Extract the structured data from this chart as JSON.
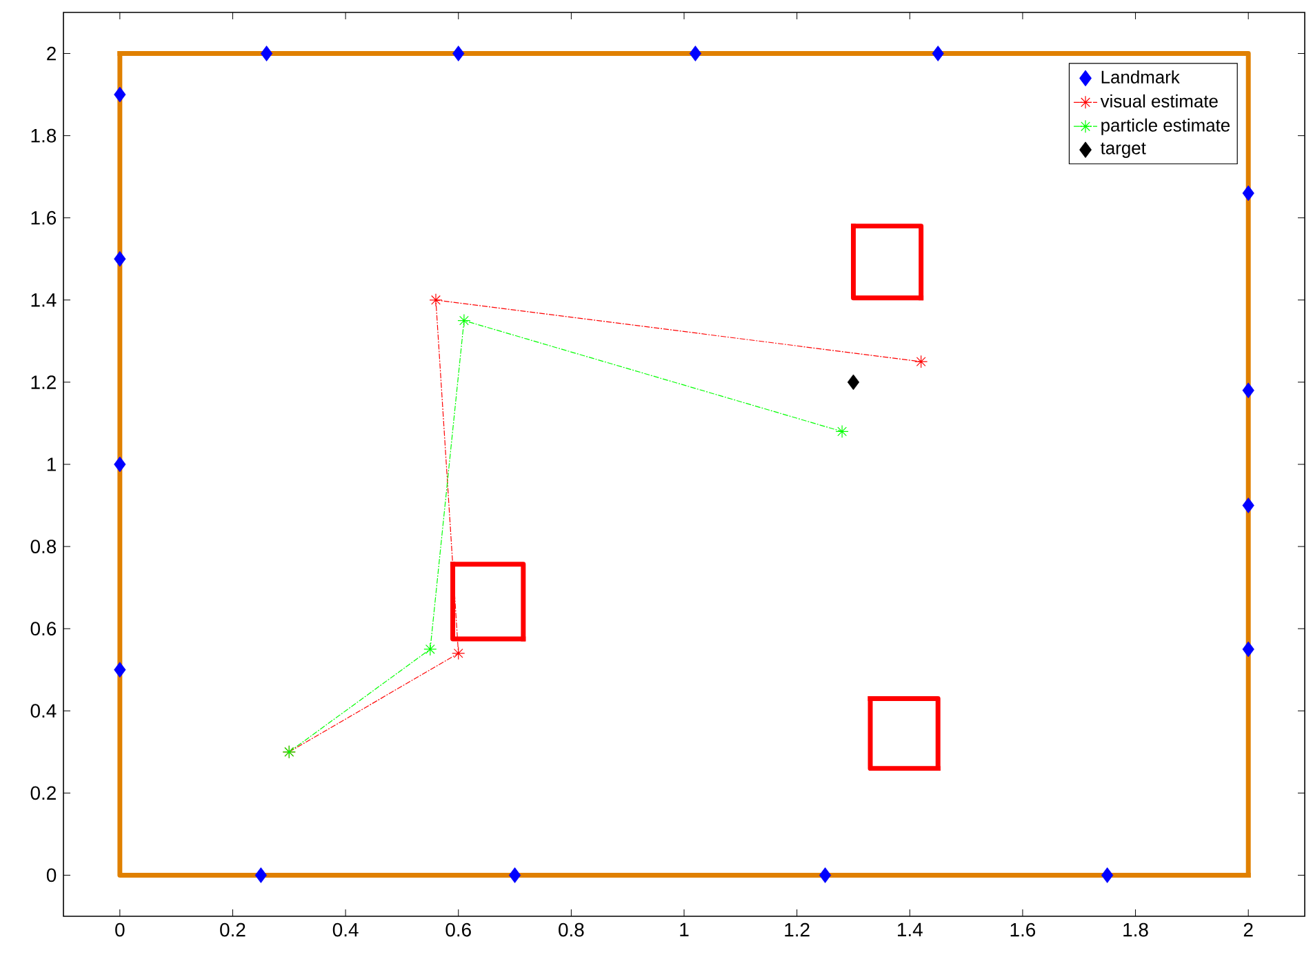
{
  "chart_data": {
    "type": "scatter",
    "xlim": [
      -0.1,
      2.1
    ],
    "ylim": [
      -0.1,
      2.1
    ],
    "xticks": [
      0,
      0.2,
      0.4,
      0.6,
      0.8,
      1,
      1.2,
      1.4,
      1.6,
      1.8,
      2
    ],
    "yticks": [
      0,
      0.2,
      0.4,
      0.6,
      0.8,
      1,
      1.2,
      1.4,
      1.6,
      1.8,
      2
    ],
    "grid": false,
    "legend": "top right",
    "series": [
      {
        "type": "line",
        "color": "#e08000",
        "marker": "none",
        "line_style": "solid",
        "x": [
          0,
          0,
          2
        ],
        "values": [
          2,
          0,
          0
        ]
      },
      {
        "type": "line",
        "color": "#e08000",
        "marker": "none",
        "line_style": "solid",
        "x": [
          2,
          2,
          0
        ],
        "values": [
          0,
          2,
          2
        ]
      },
      {
        "type": "line",
        "color": "#ff0000",
        "marker": "none",
        "line_style": "solid",
        "x": [
          0.59,
          0.59,
          0.715
        ],
        "values": [
          0.757,
          0.575,
          0.575
        ]
      },
      {
        "type": "line",
        "color": "#ff0000",
        "marker": "none",
        "line_style": "solid",
        "x": [
          0.715,
          0.715,
          0.59
        ],
        "values": [
          0.575,
          0.757,
          0.757
        ]
      },
      {
        "type": "line",
        "color": "#ff0000",
        "marker": "none",
        "line_style": "solid",
        "x": [
          1.3,
          1.3,
          1.42
        ],
        "values": [
          1.58,
          1.405,
          1.405
        ]
      },
      {
        "type": "line",
        "color": "#ff0000",
        "marker": "none",
        "line_style": "solid",
        "x": [
          1.42,
          1.42,
          1.3
        ],
        "values": [
          1.405,
          1.58,
          1.58
        ]
      },
      {
        "type": "line",
        "color": "#ff0000",
        "marker": "none",
        "line_style": "solid",
        "x": [
          1.33,
          1.33,
          1.45
        ],
        "values": [
          0.43,
          0.26,
          0.26
        ]
      },
      {
        "type": "line",
        "color": "#ff0000",
        "marker": "none",
        "line_style": "solid",
        "x": [
          1.45,
          1.45,
          1.33
        ],
        "values": [
          0.26,
          0.43,
          0.43
        ]
      },
      {
        "name": "Landmark",
        "color": "#0000ff",
        "marker": "diamond",
        "x": [
          0.26,
          0.6,
          1.02,
          1.45,
          0,
          0,
          0,
          0,
          2,
          2,
          2,
          2,
          0.25,
          0.7,
          1.25,
          1.75
        ],
        "values": [
          2,
          2,
          2,
          2,
          1.9,
          1.5,
          1,
          0.5,
          1.66,
          1.18,
          0.9,
          0.55,
          0,
          0,
          0,
          0
        ]
      },
      {
        "name": "visual estimate",
        "type": "line",
        "color": "#ff0000",
        "marker": "cross",
        "line_style": "dashdot",
        "x": [
          0.3,
          0.6,
          0.56,
          1.42
        ],
        "values": [
          0.3,
          0.54,
          1.4,
          1.25
        ]
      },
      {
        "name": "particle estimate",
        "type": "line",
        "color": "#00ff00",
        "marker": "cross",
        "line_style": "dashdot",
        "x": [
          0.3,
          0.55,
          0.61,
          1.28
        ],
        "values": [
          0.3,
          0.55,
          1.35,
          1.08
        ]
      },
      {
        "name": "target",
        "color": "#000000",
        "marker": "diamond",
        "x": [
          1.3
        ],
        "values": [
          1.2
        ]
      }
    ]
  }
}
